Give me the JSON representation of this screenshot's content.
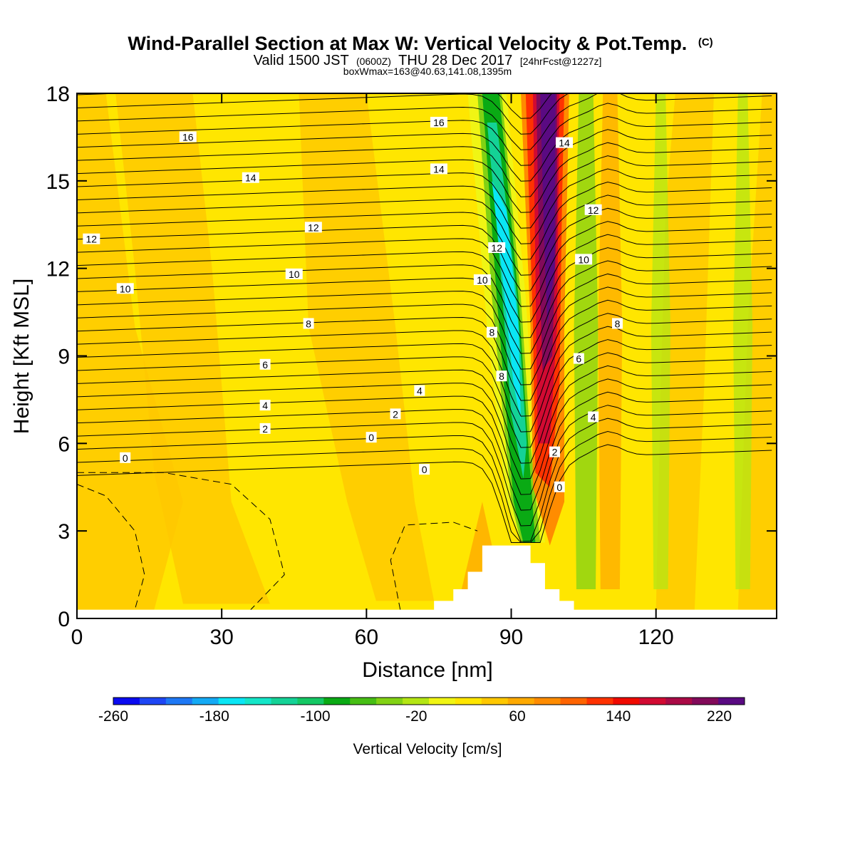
{
  "chart_data": {
    "type": "heatmap",
    "title": "Wind-Parallel Section at Max W: Vertical Velocity & Pot.Temp.",
    "title_mark": "(C)",
    "subtitle": {
      "prefix": "Valid 1500 JST",
      "small1": "(0600Z)",
      "middle": "THU 28 Dec 2017",
      "small2": "[24hrFcst@1227z]"
    },
    "subtitle2": "boxWmax=163@40.63,141.08,1395m",
    "xlabel": "Distance [nm]",
    "ylabel": "Height [Kft MSL]",
    "xlim": [
      0,
      145
    ],
    "ylim": [
      0,
      18
    ],
    "x_ticks": [
      0,
      30,
      60,
      90,
      120
    ],
    "y_ticks": [
      0,
      3,
      6,
      9,
      12,
      15,
      18
    ],
    "colorbar": {
      "label": "Vertical Velocity [cm/s]",
      "min": -260,
      "max": 240,
      "step": 20,
      "tick_values": [
        -260,
        -180,
        -100,
        -20,
        60,
        140,
        220
      ],
      "tick_labels": [
        "-260",
        "-180",
        "-100",
        "-20",
        "60",
        "140",
        "220"
      ],
      "colors": [
        "#0a0af0",
        "#1e46f5",
        "#1e78f5",
        "#14aaf5",
        "#0ae6f5",
        "#14e6c8",
        "#14d296",
        "#14c864",
        "#0aaa14",
        "#46be14",
        "#82d214",
        "#b4e614",
        "#f0f514",
        "#ffe600",
        "#ffc800",
        "#ffaa00",
        "#ff8c00",
        "#ff6400",
        "#ff3200",
        "#f00a00",
        "#d20a32",
        "#aa0a46",
        "#820a5a",
        "#5a0a82"
      ]
    },
    "velocity_cells": [
      {
        "x0": 84,
        "x1": 92,
        "value": -150,
        "note": "strong downdraft core (upper)"
      },
      {
        "x0": 95,
        "x1": 101,
        "value": 230,
        "note": "strong updraft core"
      },
      {
        "x0": 103,
        "x1": 108,
        "value": -60
      },
      {
        "x0": 108,
        "x1": 113,
        "value": 40
      },
      {
        "x0": 119,
        "x1": 123,
        "value": -40
      },
      {
        "x0": 136,
        "x1": 140,
        "value": -40
      }
    ],
    "theta_contours": {
      "labels": [
        {
          "text": "16",
          "x": 23,
          "y": 16.5
        },
        {
          "text": "14",
          "x": 36,
          "y": 15.1
        },
        {
          "text": "12",
          "x": 3,
          "y": 13.0
        },
        {
          "text": "12",
          "x": 49,
          "y": 13.4
        },
        {
          "text": "10",
          "x": 10,
          "y": 11.3
        },
        {
          "text": "10",
          "x": 45,
          "y": 11.8
        },
        {
          "text": "8",
          "x": 48,
          "y": 10.1
        },
        {
          "text": "6",
          "x": 39,
          "y": 8.7
        },
        {
          "text": "4",
          "x": 39,
          "y": 7.3
        },
        {
          "text": "2",
          "x": 39,
          "y": 6.5
        },
        {
          "text": "0",
          "x": 10,
          "y": 5.5
        },
        {
          "text": "16",
          "x": 75,
          "y": 17.0
        },
        {
          "text": "14",
          "x": 75,
          "y": 15.4
        },
        {
          "text": "4",
          "x": 71,
          "y": 7.8
        },
        {
          "text": "2",
          "x": 66,
          "y": 7.0
        },
        {
          "text": "0",
          "x": 61,
          "y": 6.2
        },
        {
          "text": "0",
          "x": 72,
          "y": 5.1
        },
        {
          "text": "12",
          "x": 87,
          "y": 12.7
        },
        {
          "text": "10",
          "x": 84,
          "y": 11.6
        },
        {
          "text": "8",
          "x": 86,
          "y": 9.8
        },
        {
          "text": "8",
          "x": 88,
          "y": 8.3
        },
        {
          "text": "14",
          "x": 101,
          "y": 16.3
        },
        {
          "text": "12",
          "x": 107,
          "y": 14.0
        },
        {
          "text": "10",
          "x": 105,
          "y": 12.3
        },
        {
          "text": "8",
          "x": 112,
          "y": 10.1
        },
        {
          "text": "6",
          "x": 104,
          "y": 8.9
        },
        {
          "text": "4",
          "x": 107,
          "y": 6.9
        },
        {
          "text": "2",
          "x": 99,
          "y": 5.7
        },
        {
          "text": "0",
          "x": 100,
          "y": 4.5
        }
      ]
    },
    "terrain": [
      [
        74,
        0.3
      ],
      [
        74,
        0.6
      ],
      [
        78,
        0.6
      ],
      [
        78,
        1.0
      ],
      [
        81,
        1.0
      ],
      [
        81,
        1.6
      ],
      [
        84,
        1.6
      ],
      [
        84,
        2.5
      ],
      [
        94,
        2.5
      ],
      [
        94,
        1.9
      ],
      [
        97,
        1.9
      ],
      [
        97,
        1.0
      ],
      [
        100,
        1.0
      ],
      [
        100,
        0.6
      ],
      [
        103,
        0.6
      ],
      [
        103,
        0.3
      ]
    ]
  }
}
